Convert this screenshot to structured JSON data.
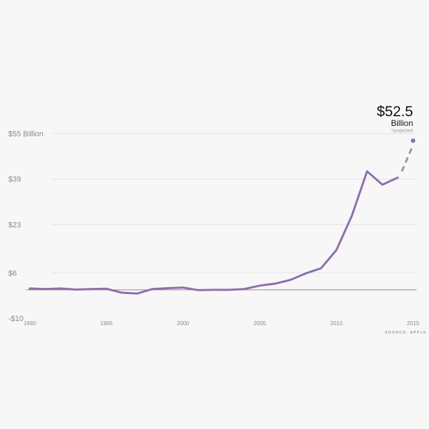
{
  "chart_data": {
    "type": "line",
    "x": [
      1990,
      1991,
      1992,
      1993,
      1994,
      1995,
      1996,
      1997,
      1998,
      1999,
      2000,
      2001,
      2002,
      2003,
      2004,
      2005,
      2006,
      2007,
      2008,
      2009,
      2010,
      2011,
      2012,
      2013,
      2014
    ],
    "series": [
      {
        "values": [
          0.5,
          0.3,
          0.5,
          0.1,
          0.3,
          0.4,
          -1.0,
          -1.3,
          0.3,
          0.6,
          0.8,
          -0.1,
          0.0,
          0.0,
          0.3,
          1.5,
          2.2,
          3.5,
          5.8,
          7.6,
          14.0,
          26.0,
          41.7,
          37.0,
          39.5
        ],
        "color": "#8e6fa8"
      }
    ],
    "projection": {
      "x": [
        2014,
        2015
      ],
      "values": [
        39.5,
        52.5
      ],
      "color": "#999999"
    },
    "callout": {
      "value": "$52.5",
      "unit": "Billion",
      "note": "*projected"
    },
    "ytick_labels": [
      "$55 Billion",
      "$39",
      "$23",
      "$6",
      "-$10"
    ],
    "ytick_values": [
      55,
      39,
      23,
      6,
      -10
    ],
    "xtick_labels": [
      "1990",
      "1995",
      "2000",
      "2005",
      "2010",
      "2015"
    ],
    "xtick_values": [
      1990,
      1995,
      2000,
      2005,
      2010,
      2015
    ],
    "xlim": [
      1990,
      2015
    ],
    "ylim": [
      -10,
      55
    ],
    "grid": true,
    "source": "SOURCE: APPLE"
  }
}
